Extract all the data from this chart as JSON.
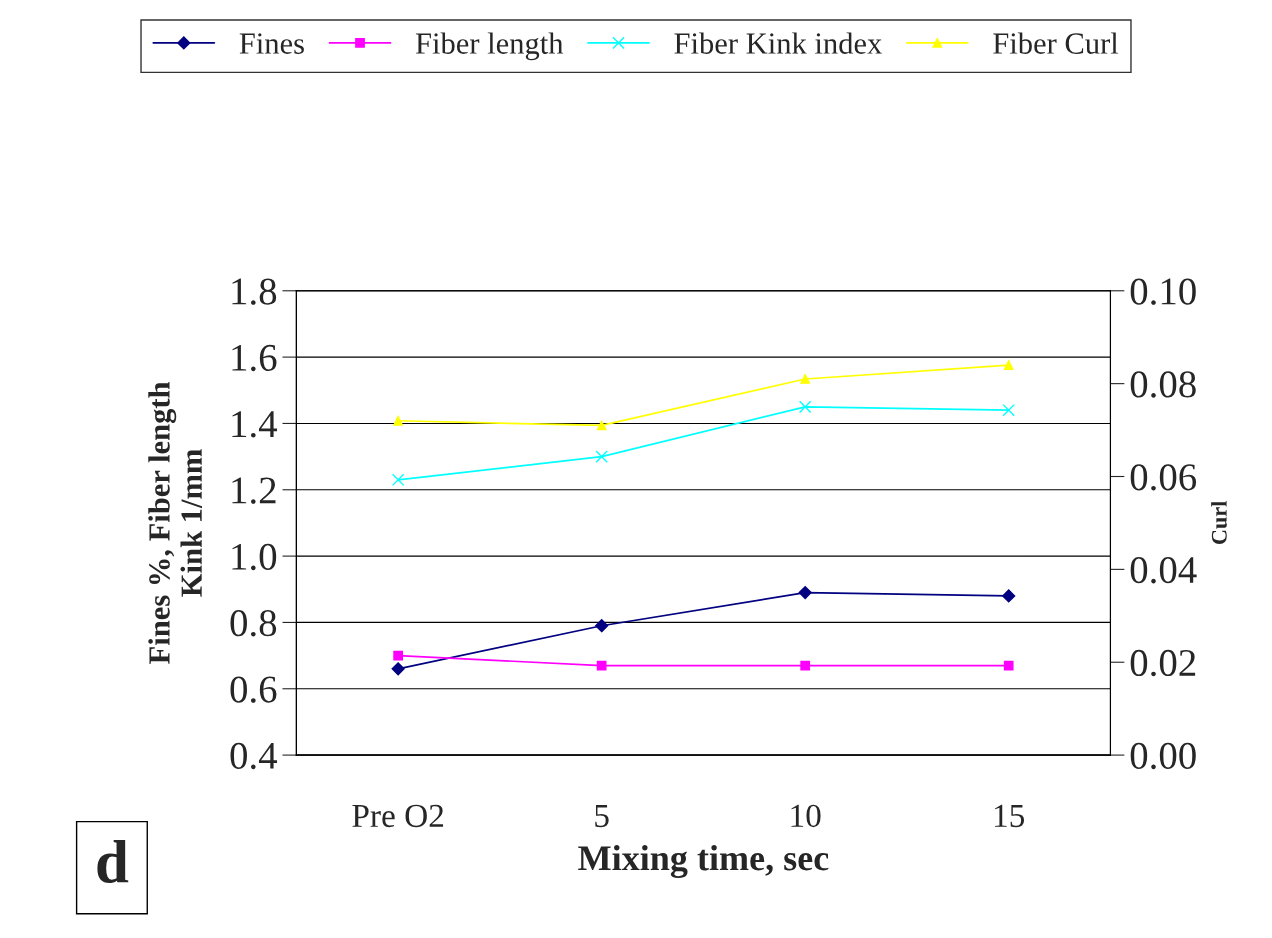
{
  "chart_data": {
    "type": "line",
    "xlabel": "Mixing time, sec",
    "ylabel": "Fines %, Fiber length\nKink 1/mm",
    "y2label": "Curl",
    "categories": [
      "Pre O2",
      "5",
      "10",
      "15"
    ],
    "series": [
      {
        "name": "Fines",
        "color": "#000080",
        "marker": "diamond",
        "values": [
          0.66,
          0.79,
          0.89,
          0.88
        ]
      },
      {
        "name": "Fiber length",
        "color": "#ff00ff",
        "marker": "square",
        "values": [
          0.7,
          0.67,
          0.67,
          0.67
        ]
      },
      {
        "name": "Fiber Kink index",
        "color": "#00ffff",
        "marker": "cross",
        "values": [
          1.23,
          1.3,
          1.45,
          1.44
        ]
      },
      {
        "name": "Fiber Curl",
        "color": "#ffff00",
        "marker": "triangle",
        "axis": "y2",
        "values": [
          0.072,
          0.071,
          0.081,
          0.084
        ]
      }
    ],
    "ylim": [
      0.4,
      1.8
    ],
    "yticks": [
      {
        "value": 0.4,
        "label": "0.4"
      },
      {
        "value": 0.6,
        "label": "0.6"
      },
      {
        "value": 0.8,
        "label": "0.8"
      },
      {
        "value": 1.0,
        "label": "1.0"
      },
      {
        "value": 1.2,
        "label": "1.2"
      },
      {
        "value": 1.4,
        "label": "1.4"
      },
      {
        "value": 1.6,
        "label": "1.6"
      },
      {
        "value": 1.8,
        "label": "1.8"
      }
    ],
    "y2lim": [
      0,
      0.1
    ],
    "y2ticks": [
      {
        "value": 0,
        "label": "0.00"
      },
      {
        "value": 0.02,
        "label": "0.02"
      },
      {
        "value": 0.04,
        "label": "0.04"
      },
      {
        "value": 0.06,
        "label": "0.06"
      },
      {
        "value": 0.08,
        "label": "0.08"
      },
      {
        "value": 0.1,
        "label": "0.10"
      }
    ],
    "grid": "y",
    "legend": "top",
    "line_style": "solid",
    "annotations": [
      "d"
    ]
  }
}
